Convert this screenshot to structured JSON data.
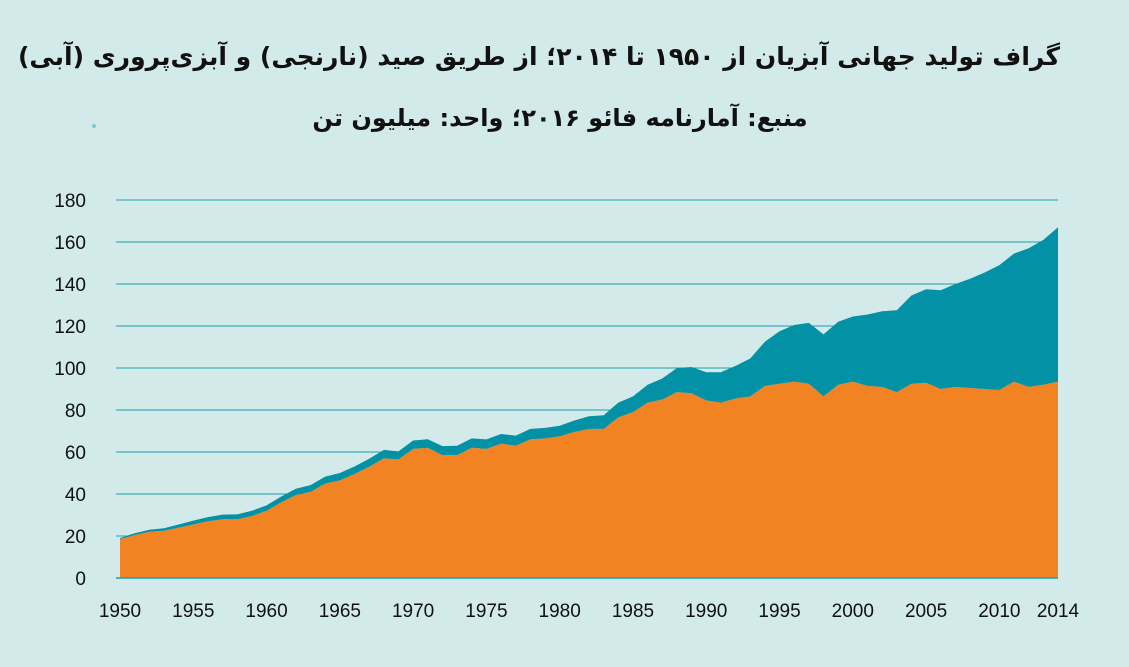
{
  "chart_data": {
    "type": "area",
    "stacked": true,
    "title": "گراف تولید جهانی آبزیان از ۱۹۵۰ تا ۲۰۱۴؛ از طریق صید (نارنجی) و آبزی‌پروری (آبی)",
    "subtitle": "منبع: آمارنامه فائو ۲۰۱۶؛ واحد: میلیون تن",
    "xlabel": "",
    "ylabel": "",
    "xlim": [
      1950,
      2014
    ],
    "ylim": [
      0,
      180
    ],
    "grid": true,
    "legend": "none",
    "x_ticks": [
      "1950",
      "1955",
      "1960",
      "1965",
      "1970",
      "1975",
      "1980",
      "1985",
      "1990",
      "1995",
      "2000",
      "2005",
      "2010",
      "2014"
    ],
    "y_ticks": [
      "0",
      "20",
      "40",
      "60",
      "80",
      "100",
      "120",
      "140",
      "160",
      "180"
    ],
    "x": [
      1950,
      1951,
      1952,
      1953,
      1954,
      1955,
      1956,
      1957,
      1958,
      1959,
      1960,
      1961,
      1962,
      1963,
      1964,
      1965,
      1966,
      1967,
      1968,
      1969,
      1970,
      1971,
      1972,
      1973,
      1974,
      1975,
      1976,
      1977,
      1978,
      1979,
      1980,
      1981,
      1982,
      1983,
      1984,
      1985,
      1986,
      1987,
      1988,
      1989,
      1990,
      1991,
      1992,
      1993,
      1994,
      1995,
      1996,
      1997,
      1998,
      1999,
      2000,
      2001,
      2002,
      2003,
      2004,
      2005,
      2006,
      2007,
      2008,
      2009,
      2010,
      2011,
      2012,
      2013,
      2014
    ],
    "series": [
      {
        "key": "capture",
        "color": "#f28323",
        "values": [
          18.5,
          20.5,
          22,
          22.5,
          24,
          25.5,
          27,
          28,
          28,
          29.5,
          32,
          36,
          39.5,
          41,
          45,
          46.5,
          49.5,
          53,
          57,
          56.5,
          61.5,
          62,
          58.5,
          58.5,
          62,
          61.5,
          64,
          63,
          66,
          66.5,
          67.5,
          69.5,
          71,
          71,
          76.5,
          79,
          83.5,
          85,
          88.5,
          88,
          84.5,
          83.5,
          85.5,
          86.5,
          91.5,
          92.5,
          93.5,
          92.5,
          86.5,
          92,
          93.5,
          91.5,
          91,
          88.5,
          92.5,
          93,
          90,
          91,
          90.5,
          90,
          89.5,
          93.5,
          91,
          92,
          93.5
        ]
      },
      {
        "key": "aquaculture",
        "color": "#0391a6",
        "values": [
          0.5,
          0.8,
          1,
          1.2,
          1.5,
          1.8,
          2,
          2.2,
          2.3,
          2.5,
          2.6,
          2.8,
          3,
          3.2,
          3.3,
          3.5,
          3.6,
          3.8,
          4,
          3.8,
          4,
          4.1,
          4.3,
          4.5,
          4.5,
          4.5,
          4.6,
          4.8,
          5,
          5,
          5,
          5.5,
          6,
          6.5,
          7,
          7.5,
          8.5,
          10,
          11.5,
          12.5,
          13.5,
          14.5,
          15.5,
          18,
          21,
          25,
          27,
          29,
          29.5,
          30,
          31,
          34,
          36,
          39,
          42,
          44.5,
          47,
          49,
          52,
          55.5,
          59.5,
          61,
          66,
          69,
          73.5
        ]
      }
    ]
  }
}
